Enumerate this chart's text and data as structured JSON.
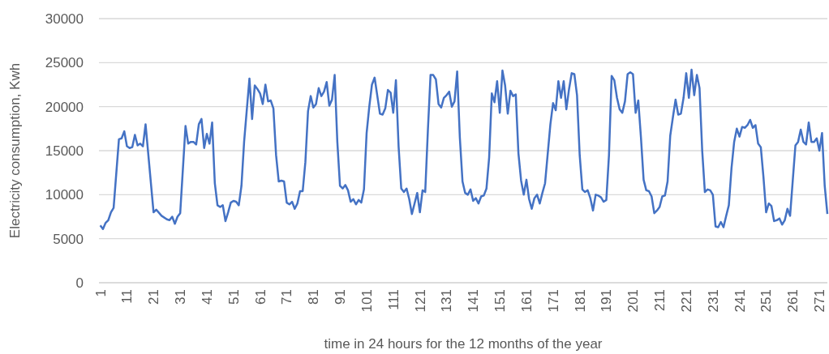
{
  "chart_data": {
    "type": "line",
    "xlabel": "time in 24 hours for the 12 months of the year",
    "ylabel": "Electricity consumption, Kwh",
    "xlim": [
      0.5,
      274
    ],
    "xticks": [
      1,
      11,
      21,
      31,
      41,
      51,
      61,
      71,
      81,
      91,
      101,
      111,
      121,
      131,
      141,
      151,
      161,
      171,
      181,
      191,
      201,
      211,
      221,
      231,
      241,
      251,
      261,
      271
    ],
    "ylim": [
      0,
      30000
    ],
    "yticks": [
      0,
      5000,
      10000,
      15000,
      20000,
      25000,
      30000
    ],
    "grid": "y",
    "series": [
      {
        "color": "#4472c4",
        "x": [
          1,
          2,
          3,
          4,
          5,
          6,
          8,
          9,
          10,
          11,
          12,
          13,
          14,
          15,
          16,
          17,
          18,
          21,
          22,
          24,
          26,
          27,
          28,
          29,
          30,
          31,
          33,
          34,
          35,
          36,
          37,
          38,
          39,
          40,
          41,
          42,
          43,
          44,
          45,
          46,
          47,
          48,
          49,
          50,
          51,
          52,
          53,
          54,
          55,
          57,
          58,
          59,
          60,
          61,
          62,
          63,
          64,
          65,
          66,
          67,
          68,
          69,
          70,
          71,
          72,
          73,
          74,
          75,
          76,
          77,
          78,
          79,
          80,
          81,
          82,
          83,
          84,
          85,
          86,
          87,
          88,
          89,
          90,
          91,
          92,
          93,
          94,
          95,
          96,
          97,
          98,
          99,
          100,
          101,
          102,
          103,
          104,
          106,
          107,
          108,
          109,
          110,
          111,
          112,
          113,
          114,
          115,
          116,
          117,
          118,
          119,
          120,
          121,
          122,
          123,
          124,
          125,
          126,
          127,
          128,
          129,
          130,
          131,
          132,
          133,
          134,
          135,
          136,
          137,
          138,
          139,
          140,
          141,
          142,
          143,
          144,
          145,
          146,
          147,
          148,
          149,
          150,
          151,
          152,
          153,
          154,
          155,
          156,
          157,
          158,
          159,
          160,
          161,
          162,
          163,
          164,
          165,
          166,
          167,
          168,
          170,
          171,
          172,
          173,
          174,
          175,
          176,
          177,
          178,
          179,
          180,
          181,
          182,
          183,
          184,
          185,
          186,
          187,
          188,
          189,
          190,
          191,
          192,
          193,
          194,
          195,
          196,
          197,
          198,
          199,
          200,
          201,
          202,
          203,
          204,
          205,
          206,
          207,
          208,
          209,
          210,
          211,
          212,
          213,
          214,
          215,
          216,
          217,
          218,
          219,
          220,
          221,
          222,
          223,
          224,
          225,
          226,
          227,
          228,
          229,
          230,
          231,
          232,
          233,
          234,
          235,
          236,
          237,
          238,
          239,
          240,
          241,
          242,
          243,
          244,
          245,
          246,
          247,
          248,
          249,
          250,
          251,
          252,
          253,
          254,
          255,
          256,
          257,
          258,
          259,
          260,
          261,
          262,
          263,
          264,
          265,
          266,
          267,
          268,
          269,
          270,
          271,
          272,
          273,
          274
        ],
        "values": [
          6500,
          6100,
          6800,
          7100,
          8000,
          8500,
          16300,
          16400,
          17200,
          15500,
          15300,
          15400,
          16800,
          15600,
          15800,
          15500,
          18000,
          8000,
          8300,
          7600,
          7200,
          7100,
          7500,
          6700,
          7500,
          7900,
          17800,
          15800,
          16000,
          16000,
          15700,
          18000,
          18600,
          15300,
          16900,
          15800,
          18200,
          11300,
          8800,
          8600,
          8800,
          7000,
          8000,
          9100,
          9300,
          9200,
          8800,
          11000,
          16000,
          23200,
          18600,
          22400,
          22000,
          21500,
          20300,
          22500,
          20600,
          20700,
          19800,
          14500,
          11500,
          11600,
          11500,
          9100,
          8900,
          9200,
          8400,
          9000,
          10400,
          10400,
          13700,
          19500,
          21200,
          19900,
          20300,
          22100,
          21200,
          21700,
          22800,
          20100,
          20800,
          23600,
          16000,
          11000,
          10700,
          11100,
          10500,
          9200,
          9500,
          8900,
          9400,
          9100,
          10600,
          17000,
          20000,
          22500,
          23300,
          19200,
          19100,
          19800,
          21900,
          21600,
          19300,
          23000,
          15500,
          10700,
          10300,
          10700,
          9500,
          7800,
          9000,
          10200,
          8000,
          10500,
          10300,
          17300,
          23600,
          23600,
          23100,
          20300,
          19900,
          21000,
          21300,
          21700,
          20000,
          20600,
          24000,
          16500,
          11500,
          10200,
          10000,
          10600,
          9300,
          9600,
          9000,
          9800,
          9900,
          10700,
          14200,
          21500,
          20500,
          22900,
          19300,
          24100,
          22400,
          19200,
          21800,
          21200,
          21400,
          14700,
          11600,
          10000,
          11700,
          9500,
          8400,
          9600,
          10000,
          9000,
          10200,
          11300,
          18000,
          20400,
          19600,
          22900,
          21000,
          22900,
          19700,
          22000,
          23800,
          23700,
          21300,
          14500,
          10600,
          10300,
          10500,
          9600,
          8200,
          10000,
          9900,
          9700,
          9200,
          9400,
          14500,
          23500,
          23000,
          21000,
          19700,
          19300,
          20600,
          23700,
          23900,
          23700,
          19300,
          20700,
          16500,
          11700,
          10500,
          10400,
          9800,
          7900,
          8200,
          8600,
          9800,
          9900,
          11500,
          16700,
          18800,
          20800,
          19100,
          19200,
          21000,
          23800,
          21000,
          24200,
          21300,
          23600,
          22100,
          15000,
          10300,
          10600,
          10500,
          10000,
          6400,
          6300,
          6900,
          6300,
          7600,
          8800,
          13000,
          16000,
          17500,
          16600,
          17700,
          17600,
          17900,
          18500,
          17600,
          17900,
          15800,
          15400,
          12000,
          8000,
          9000,
          8700,
          7000,
          7100,
          7300,
          6600,
          7100,
          8400,
          7600,
          11600,
          15600,
          16000,
          17400,
          16000,
          15700,
          18200,
          16000,
          16000,
          16400,
          15000,
          17000,
          11000,
          7800
        ]
      }
    ]
  }
}
